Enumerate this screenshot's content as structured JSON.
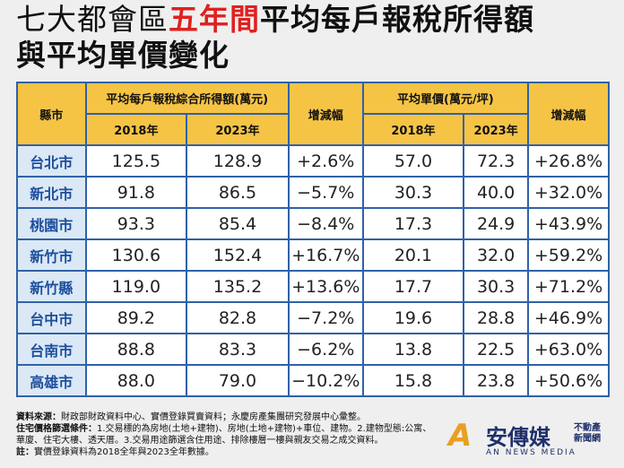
{
  "header": {
    "title_parts": [
      "七大都會區",
      "五年間",
      "平均每戶報稅所得額"
    ],
    "title_line2": "與平均單價變化"
  },
  "table": {
    "head1": [
      "縣市",
      "平均每戶報稅綜合所得額(萬元)",
      "增減幅",
      "平均單價(萬元/坪)",
      "增減幅"
    ],
    "head2": [
      "2018年",
      "2023年",
      "2018年",
      "2023年"
    ],
    "rows": [
      [
        "台北市",
        "125.5",
        "128.9",
        "+2.6%",
        "57.0",
        "72.3",
        "+26.8%"
      ],
      [
        "新北市",
        "91.8",
        "86.5",
        "−5.7%",
        "30.3",
        "40.0",
        "+32.0%"
      ],
      [
        "桃園市",
        "93.3",
        "85.4",
        "−8.4%",
        "17.3",
        "24.9",
        "+43.9%"
      ],
      [
        "新竹市",
        "130.6",
        "152.4",
        "+16.7%",
        "20.1",
        "32.0",
        "+59.2%"
      ],
      [
        "新竹縣",
        "119.0",
        "135.2",
        "+13.6%",
        "17.7",
        "30.3",
        "+71.2%"
      ],
      [
        "台中市",
        "89.2",
        "82.8",
        "−7.2%",
        "19.6",
        "28.8",
        "+46.9%"
      ],
      [
        "台南市",
        "88.8",
        "83.3",
        "−6.2%",
        "13.8",
        "22.5",
        "+63.0%"
      ],
      [
        "高雄市",
        "88.0",
        "79.0",
        "−10.2%",
        "15.8",
        "23.8",
        "+50.6%"
      ]
    ]
  },
  "notes": [
    {
      "label": "資料來源：",
      "text": "財政部財政資料中心、實價登錄買賣資料；永慶房產集團研究發展中心彙整。"
    },
    {
      "label": "住宅價格篩選條件：",
      "text": "1.交易標的為房地(土地+建物)、房地(土地+建物)+車位、建物。2.建物型態:公寓、華廈、住宅大樓、透天厝。3.交易用途篩選含住用途、排除樓層一樓與親友交易之成交資料。"
    },
    {
      "label": "註：",
      "text": "實價登錄資料為2018全年與2023全年數據。"
    }
  ],
  "logo": {
    "name": "安傳媒",
    "sub": "AN NEWS MEDIA",
    "tag": "不動產新聞網"
  }
}
